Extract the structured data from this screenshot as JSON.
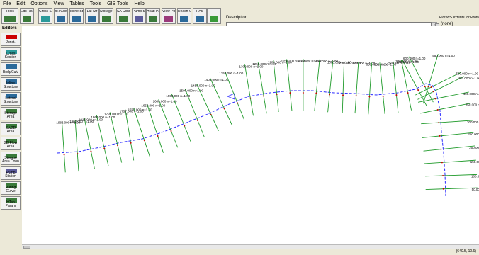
{
  "menu": [
    "File",
    "Edit",
    "Options",
    "View",
    "Tables",
    "Tools",
    "GIS Tools",
    "Help"
  ],
  "toolbar": {
    "buttons": [
      {
        "label": "Tools",
        "color": "#3a7a3a"
      },
      {
        "label": "Edit Reach",
        "color": "#3a7a3a"
      },
      {
        "label": "Cross Sect",
        "color": "#2b9a9a"
      },
      {
        "label": "BR/Culv Edit",
        "color": "#2b6a9a"
      },
      {
        "label": "Inline Str",
        "color": "#2b6a9a"
      },
      {
        "label": "Lat Str",
        "color": "#2b6a9a"
      },
      {
        "label": "Storage Area",
        "color": "#3a7a3a"
      },
      {
        "label": "SA Conn",
        "color": "#3a7a3a"
      },
      {
        "label": "Pump Stn",
        "color": "#5a5a9a"
      },
      {
        "label": "HTab Param",
        "color": "#3a7a3a"
      },
      {
        "label": "View Pic",
        "color": "#9a3a7a"
      },
      {
        "label": "Reach Cond",
        "color": "#2b6a9a"
      },
      {
        "label": "RAS",
        "color": "#2b6a9a"
      },
      {
        "label": "",
        "color": "#3a9a3a"
      }
    ],
    "description_label": "Description :",
    "units_label": "Plot WS extents for Profile",
    "units_value": "(none)",
    "scroll_glyph": "↕"
  },
  "sidebar": {
    "title": "Editors",
    "items": [
      "Junct.",
      "Cross Section",
      "Brdg/Culv",
      "Inline Structure",
      "Lateral Structure",
      "Storage Area",
      "SA/2D Area",
      "2D Flow Area",
      "Storage Area Conn",
      "Pump Station",
      "Rating Curve",
      "HTab Param"
    ]
  },
  "status": {
    "coords": "(640.5, 10.6)"
  },
  "stations": [
    {
      "station": "1983.000",
      "n": "1.00"
    },
    {
      "station": "1962.000",
      "n": "1.00"
    },
    {
      "station": "1916.000",
      "n": "1.00"
    },
    {
      "station": "1860.000",
      "n": "1.00"
    },
    {
      "station": "1799.000",
      "n": "1.00"
    },
    {
      "station": "1757.000",
      "n": "1.00"
    },
    {
      "station": "1700.000",
      "n": "1.00"
    },
    {
      "station": "1650.000",
      "n": "1.00"
    },
    {
      "station": "1600.000",
      "n": "1.00"
    },
    {
      "station": "1550.000",
      "n": "1.00"
    },
    {
      "station": "1500.000",
      "n": "1.00"
    },
    {
      "station": "1450.000",
      "n": "1.00"
    },
    {
      "station": "1400.000",
      "n": "1.00"
    },
    {
      "station": "1350.000",
      "n": "1.00"
    },
    {
      "station": "1300.000",
      "n": "1.00"
    },
    {
      "station": "1250.000",
      "n": "1.00"
    },
    {
      "station": "1200.000",
      "n": "1.00"
    },
    {
      "station": "1150.000",
      "n": "1.00"
    },
    {
      "station": "1100.000",
      "n": "1.00"
    },
    {
      "station": "1050.000",
      "n": "1.00"
    },
    {
      "station": "1000.000",
      "n": "1.00"
    },
    {
      "station": "950.000",
      "n": "1.00"
    },
    {
      "station": "900.000",
      "n": "1.00"
    },
    {
      "station": "850.000",
      "n": "1.00"
    },
    {
      "station": "800.000",
      "n": "1.00"
    },
    {
      "station": "750.000",
      "n": "1.00"
    },
    {
      "station": "700.000",
      "n": "1.00"
    },
    {
      "station": "650.000",
      "n": "1.00"
    },
    {
      "station": "600.000",
      "n": "1.00"
    },
    {
      "station": "550.000",
      "n": "1.00"
    },
    {
      "station": "500.000",
      "n": "1.00"
    },
    {
      "station": "450.000",
      "n": "1.00"
    },
    {
      "station": "400.000",
      "n": "1.00"
    },
    {
      "station": "350.000",
      "n": "1.00"
    },
    {
      "station": "300.000",
      "n": "1.00"
    },
    {
      "station": "250.000",
      "n": "1.00"
    },
    {
      "station": "200.000",
      "n": "1.00"
    },
    {
      "station": "150.000",
      "n": "1.00"
    },
    {
      "station": "100.000",
      "n": "1.00"
    },
    {
      "station": "50.000",
      "n": "1.00"
    }
  ],
  "colors": {
    "xs": "#1f9a2a",
    "river": "#2a2aff",
    "bank": "#cc0000"
  }
}
